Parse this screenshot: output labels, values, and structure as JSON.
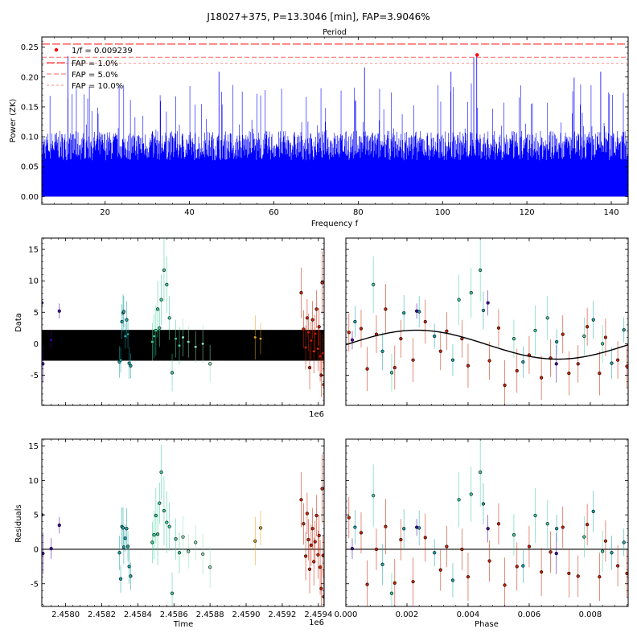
{
  "figure": {
    "title": "J18027+375, P=13.3046 [min], FAP=3.9046%"
  },
  "chart_data": [
    {
      "id": "periodogram",
      "type": "line",
      "top_label": "Period",
      "xlabel": "Frequency f",
      "ylabel": "Power (ZK)",
      "xlim": [
        5,
        144
      ],
      "ylim": [
        -0.013,
        0.267
      ],
      "xticks": [
        20,
        40,
        60,
        80,
        100,
        120,
        140
      ],
      "yticks": [
        0.0,
        0.05,
        0.1,
        0.15,
        0.2,
        0.25
      ],
      "ytick_labels": [
        "0.00",
        "0.05",
        "0.10",
        "0.15",
        "0.20",
        "0.25"
      ],
      "series_color": "#0000ff",
      "noise_model": {
        "typical_max": 0.11,
        "peak_max": 0.19,
        "count": 1400
      },
      "notable_peaks": [
        {
          "x": 11.2,
          "y": 0.235
        },
        {
          "x": 47.0,
          "y": 0.209
        },
        {
          "x": 81.5,
          "y": 0.216
        },
        {
          "x": 102.0,
          "y": 0.209
        },
        {
          "x": 107.4,
          "y": 0.233
        },
        {
          "x": 108.1,
          "y": 0.237
        },
        {
          "x": 131.2,
          "y": 0.199
        },
        {
          "x": 137.5,
          "y": 0.209
        }
      ],
      "best_frequency": {
        "label": "1/f = 0.009239",
        "x": 108.2,
        "y": 0.237,
        "color": "#ff0000"
      },
      "fap_lines": [
        {
          "label": "FAP = 1.0%",
          "y": 0.255,
          "color": "#ff0000"
        },
        {
          "label": "FAP = 5.0%",
          "y": 0.233,
          "color": "#ff0000"
        },
        {
          "label": "FAP = 10.0%",
          "y": 0.223,
          "color": "#ff0000"
        }
      ],
      "legend_position": "top-left"
    },
    {
      "id": "data_vs_time",
      "type": "scatter",
      "ylabel": "Data",
      "xlim": [
        2457868,
        2459432
      ],
      "ylim": [
        -9.8,
        16.8
      ],
      "yticks": [
        -5,
        0,
        5,
        10,
        15
      ],
      "offset_text": "1e6",
      "model_band": {
        "ymin": -2.7,
        "ymax": 2.2,
        "color": "#000000"
      },
      "point_groups": [
        {
          "name": "g1",
          "color": "#4400aa",
          "x": [
            2457868,
            2457874,
            2457920,
            2457965
          ],
          "y": [
            6.5,
            -3.2,
            0.6,
            5.2
          ],
          "err": [
            2.0,
            3.0,
            1.5,
            1.2
          ]
        },
        {
          "name": "g2",
          "color": "#1aa6a6",
          "x": [
            2458298,
            2458305,
            2458312,
            2458318,
            2458322,
            2458330,
            2458338,
            2458345,
            2458352,
            2458360
          ],
          "y": [
            -2.9,
            -2.6,
            3.5,
            4.9,
            5.1,
            1.2,
            3.8,
            1.5,
            -3.1,
            -3.5
          ],
          "err": [
            2.5,
            2.0,
            2.8,
            3.0,
            2.5,
            2.0,
            3.0,
            2.2,
            2.5,
            2.0
          ]
        },
        {
          "name": "g3",
          "color": "#3ecf9a",
          "x": [
            2458480,
            2458490,
            2458500,
            2458510,
            2458520,
            2458530,
            2458545,
            2458560,
            2458575,
            2458590,
            2458610,
            2458630
          ],
          "y": [
            0.3,
            1.2,
            2.1,
            5.5,
            2.5,
            7.0,
            11.7,
            9.4,
            4.1,
            -4.6,
            0.8,
            -0.3
          ],
          "err": [
            3.0,
            3.5,
            4.0,
            4.5,
            3.0,
            4.0,
            5.0,
            4.5,
            3.5,
            3.0,
            3.0,
            3.0
          ]
        },
        {
          "name": "g4",
          "color": "#8fe0b8",
          "x": [
            2458650,
            2458680,
            2458720,
            2458760,
            2458800
          ],
          "y": [
            1.0,
            0.3,
            -0.5,
            0.0,
            -3.2
          ],
          "err": [
            3.0,
            2.5,
            2.5,
            3.0,
            3.0
          ]
        },
        {
          "name": "g5",
          "color": "#d9a020",
          "x": [
            2459050,
            2459080
          ],
          "y": [
            1.0,
            0.8
          ],
          "err": [
            3.5,
            2.5
          ]
        },
        {
          "name": "g6",
          "color": "#cc2200",
          "x": [
            2459305,
            2459318,
            2459330,
            2459338,
            2459345,
            2459352,
            2459360,
            2459368,
            2459375,
            2459382,
            2459390,
            2459398,
            2459404,
            2459410,
            2459416,
            2459421,
            2459426,
            2459430
          ],
          "y": [
            8.1,
            2.3,
            -0.6,
            4.1,
            1.8,
            -3.8,
            0.5,
            3.8,
            -1.2,
            1.6,
            5.5,
            -0.8,
            2.7,
            -2.0,
            -5.0,
            9.7,
            -1.5,
            -6.5
          ],
          "err": [
            4.0,
            3.0,
            3.5,
            3.0,
            3.0,
            3.5,
            3.0,
            3.0,
            3.5,
            3.0,
            3.0,
            3.5,
            3.0,
            4.0,
            3.5,
            5.0,
            3.0,
            4.0
          ]
        }
      ]
    },
    {
      "id": "data_vs_phase",
      "type": "scatter",
      "xlim": [
        0,
        0.009239
      ],
      "ylim": [
        -9.8,
        16.8
      ],
      "yticks": [
        -5,
        0,
        5,
        10,
        15
      ],
      "model": {
        "amplitude": 2.3,
        "offset": -0.15,
        "phase_peak": 0.00232,
        "color": "#000000"
      },
      "point_groups": [
        {
          "name": "g1",
          "color": "#4400aa",
          "x": [
            0.00232,
            0.00465,
            0.00021,
            0.00689
          ],
          "y": [
            5.2,
            6.5,
            0.6,
            -3.2
          ],
          "err": [
            1.2,
            2.0,
            1.5,
            3.0
          ]
        },
        {
          "name": "g2",
          "color": "#1aa6a6",
          "x": [
            0.0003,
            0.0012,
            0.0019,
            0.0024,
            0.0029,
            0.0035,
            0.0045,
            0.0058,
            0.0069,
            0.0081,
            0.0087,
            0.0091
          ],
          "y": [
            3.5,
            -1.2,
            4.9,
            5.1,
            1.2,
            -2.6,
            5.3,
            -2.9,
            0.3,
            3.8,
            -3.1,
            2.2
          ],
          "err": [
            2.5,
            3.0,
            2.8,
            2.5,
            2.0,
            2.5,
            3.0,
            2.5,
            2.0,
            3.0,
            2.5,
            2.0
          ]
        },
        {
          "name": "g3",
          "color": "#3ecf9a",
          "x": [
            0.0009,
            0.0015,
            0.0037,
            0.0041,
            0.0044,
            0.0055,
            0.0062,
            0.0066,
            0.0078,
            0.0084
          ],
          "y": [
            9.4,
            -4.6,
            7.0,
            8.1,
            11.7,
            0.8,
            2.1,
            4.1,
            1.2,
            0.0
          ],
          "err": [
            4.5,
            3.0,
            4.0,
            4.0,
            5.0,
            3.0,
            4.0,
            3.5,
            3.0,
            3.0
          ]
        },
        {
          "name": "g6",
          "color": "#cc2200",
          "x": [
            0.0001,
            0.0005,
            0.0007,
            0.001,
            0.0013,
            0.0016,
            0.0018,
            0.0022,
            0.0026,
            0.0031,
            0.0033,
            0.0038,
            0.004,
            0.0047,
            0.005,
            0.0052,
            0.0056,
            0.006,
            0.0064,
            0.0067,
            0.0071,
            0.0073,
            0.0076,
            0.0079,
            0.0083,
            0.0085,
            0.0089,
            0.0092
          ],
          "y": [
            1.8,
            2.4,
            -4.0,
            1.5,
            5.5,
            -3.8,
            0.8,
            -2.6,
            3.5,
            -1.2,
            2.0,
            0.8,
            -3.5,
            -2.7,
            2.5,
            -6.6,
            -4.3,
            -1.8,
            -5.4,
            -2.3,
            1.5,
            -4.7,
            -3.2,
            2.7,
            -4.7,
            1.0,
            -2.6,
            -3.6
          ],
          "err": [
            3.0,
            3.0,
            3.5,
            3.0,
            4.0,
            3.5,
            3.0,
            3.5,
            3.5,
            3.0,
            3.0,
            3.0,
            3.5,
            3.0,
            3.0,
            4.0,
            3.5,
            3.0,
            3.5,
            3.0,
            3.0,
            3.5,
            3.0,
            3.0,
            3.5,
            3.0,
            3.0,
            3.5
          ]
        }
      ]
    },
    {
      "id": "residuals_vs_time",
      "type": "scatter",
      "ylabel": "Residuals",
      "xlabel": "Time",
      "xlim": [
        2457868,
        2459432
      ],
      "ylim": [
        -8.3,
        16.0
      ],
      "xticks": [
        2458000,
        2458200,
        2458400,
        2458600,
        2458800,
        2459000,
        2459200,
        2459400
      ],
      "xtick_labels": [
        "2.4580",
        "2.4582",
        "2.4584",
        "2.4586",
        "2.4588",
        "2.4590",
        "2.4592",
        "2.4594"
      ],
      "yticks": [
        -5,
        0,
        5,
        10,
        15
      ],
      "offset_text": "1e6",
      "zero_line": {
        "y": 0,
        "color": "#000000"
      },
      "point_groups": [
        {
          "name": "g1",
          "color": "#4400aa",
          "x": [
            2457868,
            2457874,
            2457920,
            2457965
          ],
          "y": [
            5.0,
            -0.6,
            0.1,
            3.5
          ],
          "err": [
            2.0,
            3.0,
            1.5,
            1.2
          ]
        },
        {
          "name": "g2",
          "color": "#1aa6a6",
          "x": [
            2458298,
            2458305,
            2458312,
            2458318,
            2458322,
            2458330,
            2458338,
            2458345,
            2458352,
            2458360
          ],
          "y": [
            -0.5,
            -4.3,
            3.3,
            3.1,
            0.3,
            1.6,
            3.0,
            0.4,
            -2.5,
            -3.9
          ],
          "err": [
            2.5,
            2.0,
            2.8,
            3.0,
            2.5,
            2.0,
            3.0,
            2.2,
            2.5,
            2.0
          ]
        },
        {
          "name": "g3",
          "color": "#3ecf9a",
          "x": [
            2458480,
            2458490,
            2458500,
            2458510,
            2458520,
            2458530,
            2458545,
            2458560,
            2458575,
            2458590,
            2458610,
            2458630
          ],
          "y": [
            1.0,
            2.1,
            4.9,
            2.2,
            6.7,
            11.2,
            5.6,
            3.9,
            3.3,
            -6.4,
            1.5,
            -0.5
          ],
          "err": [
            3.0,
            3.5,
            4.0,
            4.5,
            3.0,
            4.0,
            5.0,
            4.5,
            3.5,
            3.0,
            3.0,
            3.0
          ]
        },
        {
          "name": "g4",
          "color": "#8fe0b8",
          "x": [
            2458650,
            2458680,
            2458720,
            2458760,
            2458800
          ],
          "y": [
            1.8,
            -0.3,
            1.0,
            -0.7,
            -2.6
          ],
          "err": [
            3.0,
            2.5,
            2.5,
            3.0,
            3.0
          ]
        },
        {
          "name": "g5",
          "color": "#d9a020",
          "x": [
            2459050,
            2459080
          ],
          "y": [
            1.2,
            3.1
          ],
          "err": [
            3.5,
            2.5
          ]
        },
        {
          "name": "g6",
          "color": "#cc2200",
          "x": [
            2459305,
            2459318,
            2459330,
            2459338,
            2459345,
            2459352,
            2459360,
            2459368,
            2459375,
            2459382,
            2459390,
            2459398,
            2459404,
            2459410,
            2459416,
            2459421,
            2459426,
            2459430
          ],
          "y": [
            7.2,
            3.7,
            -1.0,
            5.2,
            1.4,
            -2.9,
            0.6,
            3.0,
            -1.8,
            1.1,
            4.9,
            -0.8,
            2.0,
            -2.6,
            -5.7,
            8.8,
            -0.9,
            -6.9
          ],
          "err": [
            4.0,
            3.0,
            3.5,
            3.0,
            3.0,
            3.5,
            3.0,
            3.0,
            3.5,
            3.0,
            3.0,
            3.5,
            3.0,
            4.0,
            3.5,
            5.0,
            3.0,
            4.0
          ]
        }
      ]
    },
    {
      "id": "residuals_vs_phase",
      "type": "scatter",
      "xlabel": "Phase",
      "xlim": [
        0,
        0.009239
      ],
      "ylim": [
        -8.3,
        16.0
      ],
      "xticks": [
        0.0,
        0.002,
        0.004,
        0.006,
        0.008
      ],
      "xtick_labels": [
        "0.000",
        "0.002",
        "0.004",
        "0.006",
        "0.008"
      ],
      "yticks": [
        -5,
        0,
        5,
        10,
        15
      ],
      "zero_line": {
        "y": 0,
        "color": "#000000"
      },
      "point_groups": [
        {
          "name": "g1",
          "color": "#4400aa",
          "x": [
            0.00232,
            0.00465,
            0.00021,
            0.00689
          ],
          "y": [
            3.2,
            3.0,
            0.1,
            -0.6
          ],
          "err": [
            1.2,
            2.0,
            1.5,
            3.0
          ]
        },
        {
          "name": "g2",
          "color": "#1aa6a6",
          "x": [
            0.0003,
            0.0012,
            0.0019,
            0.0024,
            0.0029,
            0.0035,
            0.0045,
            0.0058,
            0.0069,
            0.0081,
            0.0087,
            0.0091
          ],
          "y": [
            3.2,
            -2.2,
            3.0,
            3.1,
            -0.5,
            -4.5,
            6.6,
            -2.4,
            3.0,
            5.5,
            -0.5,
            1.0
          ],
          "err": [
            2.5,
            3.0,
            2.8,
            2.5,
            2.0,
            2.5,
            3.0,
            2.5,
            2.0,
            3.0,
            2.5,
            2.0
          ]
        },
        {
          "name": "g3",
          "color": "#3ecf9a",
          "x": [
            0.0009,
            0.0015,
            0.0037,
            0.0041,
            0.0044,
            0.0055,
            0.0062,
            0.0066,
            0.0078,
            0.0084
          ],
          "y": [
            7.8,
            -6.4,
            7.2,
            8.0,
            11.2,
            2.1,
            4.9,
            3.7,
            1.8,
            -0.3
          ],
          "err": [
            4.5,
            3.0,
            4.0,
            4.0,
            5.0,
            3.0,
            4.0,
            3.5,
            3.0,
            3.0
          ]
        },
        {
          "name": "g6",
          "color": "#cc2200",
          "x": [
            0.0001,
            0.0005,
            0.0007,
            0.001,
            0.0013,
            0.0016,
            0.0018,
            0.0022,
            0.0026,
            0.0031,
            0.0033,
            0.0038,
            0.004,
            0.0047,
            0.005,
            0.0052,
            0.0056,
            0.006,
            0.0064,
            0.0067,
            0.0071,
            0.0073,
            0.0076,
            0.0079,
            0.0083,
            0.0085,
            0.0089,
            0.0092
          ],
          "y": [
            4.6,
            2.4,
            -5.1,
            0.0,
            3.3,
            -4.9,
            1.4,
            -4.7,
            1.7,
            -3.0,
            0.4,
            0.0,
            -4.0,
            -1.7,
            3.7,
            -5.2,
            -2.5,
            0.4,
            -3.3,
            -0.4,
            3.2,
            -3.5,
            -3.9,
            3.6,
            -4.0,
            1.2,
            -2.4,
            -3.5
          ],
          "err": [
            3.0,
            3.0,
            3.5,
            3.0,
            4.0,
            3.5,
            3.0,
            3.5,
            3.5,
            3.0,
            3.0,
            3.0,
            3.5,
            3.0,
            3.0,
            4.0,
            3.5,
            3.0,
            3.5,
            3.0,
            3.0,
            3.5,
            3.0,
            3.0,
            3.5,
            3.0,
            3.0,
            3.5
          ]
        }
      ]
    }
  ]
}
